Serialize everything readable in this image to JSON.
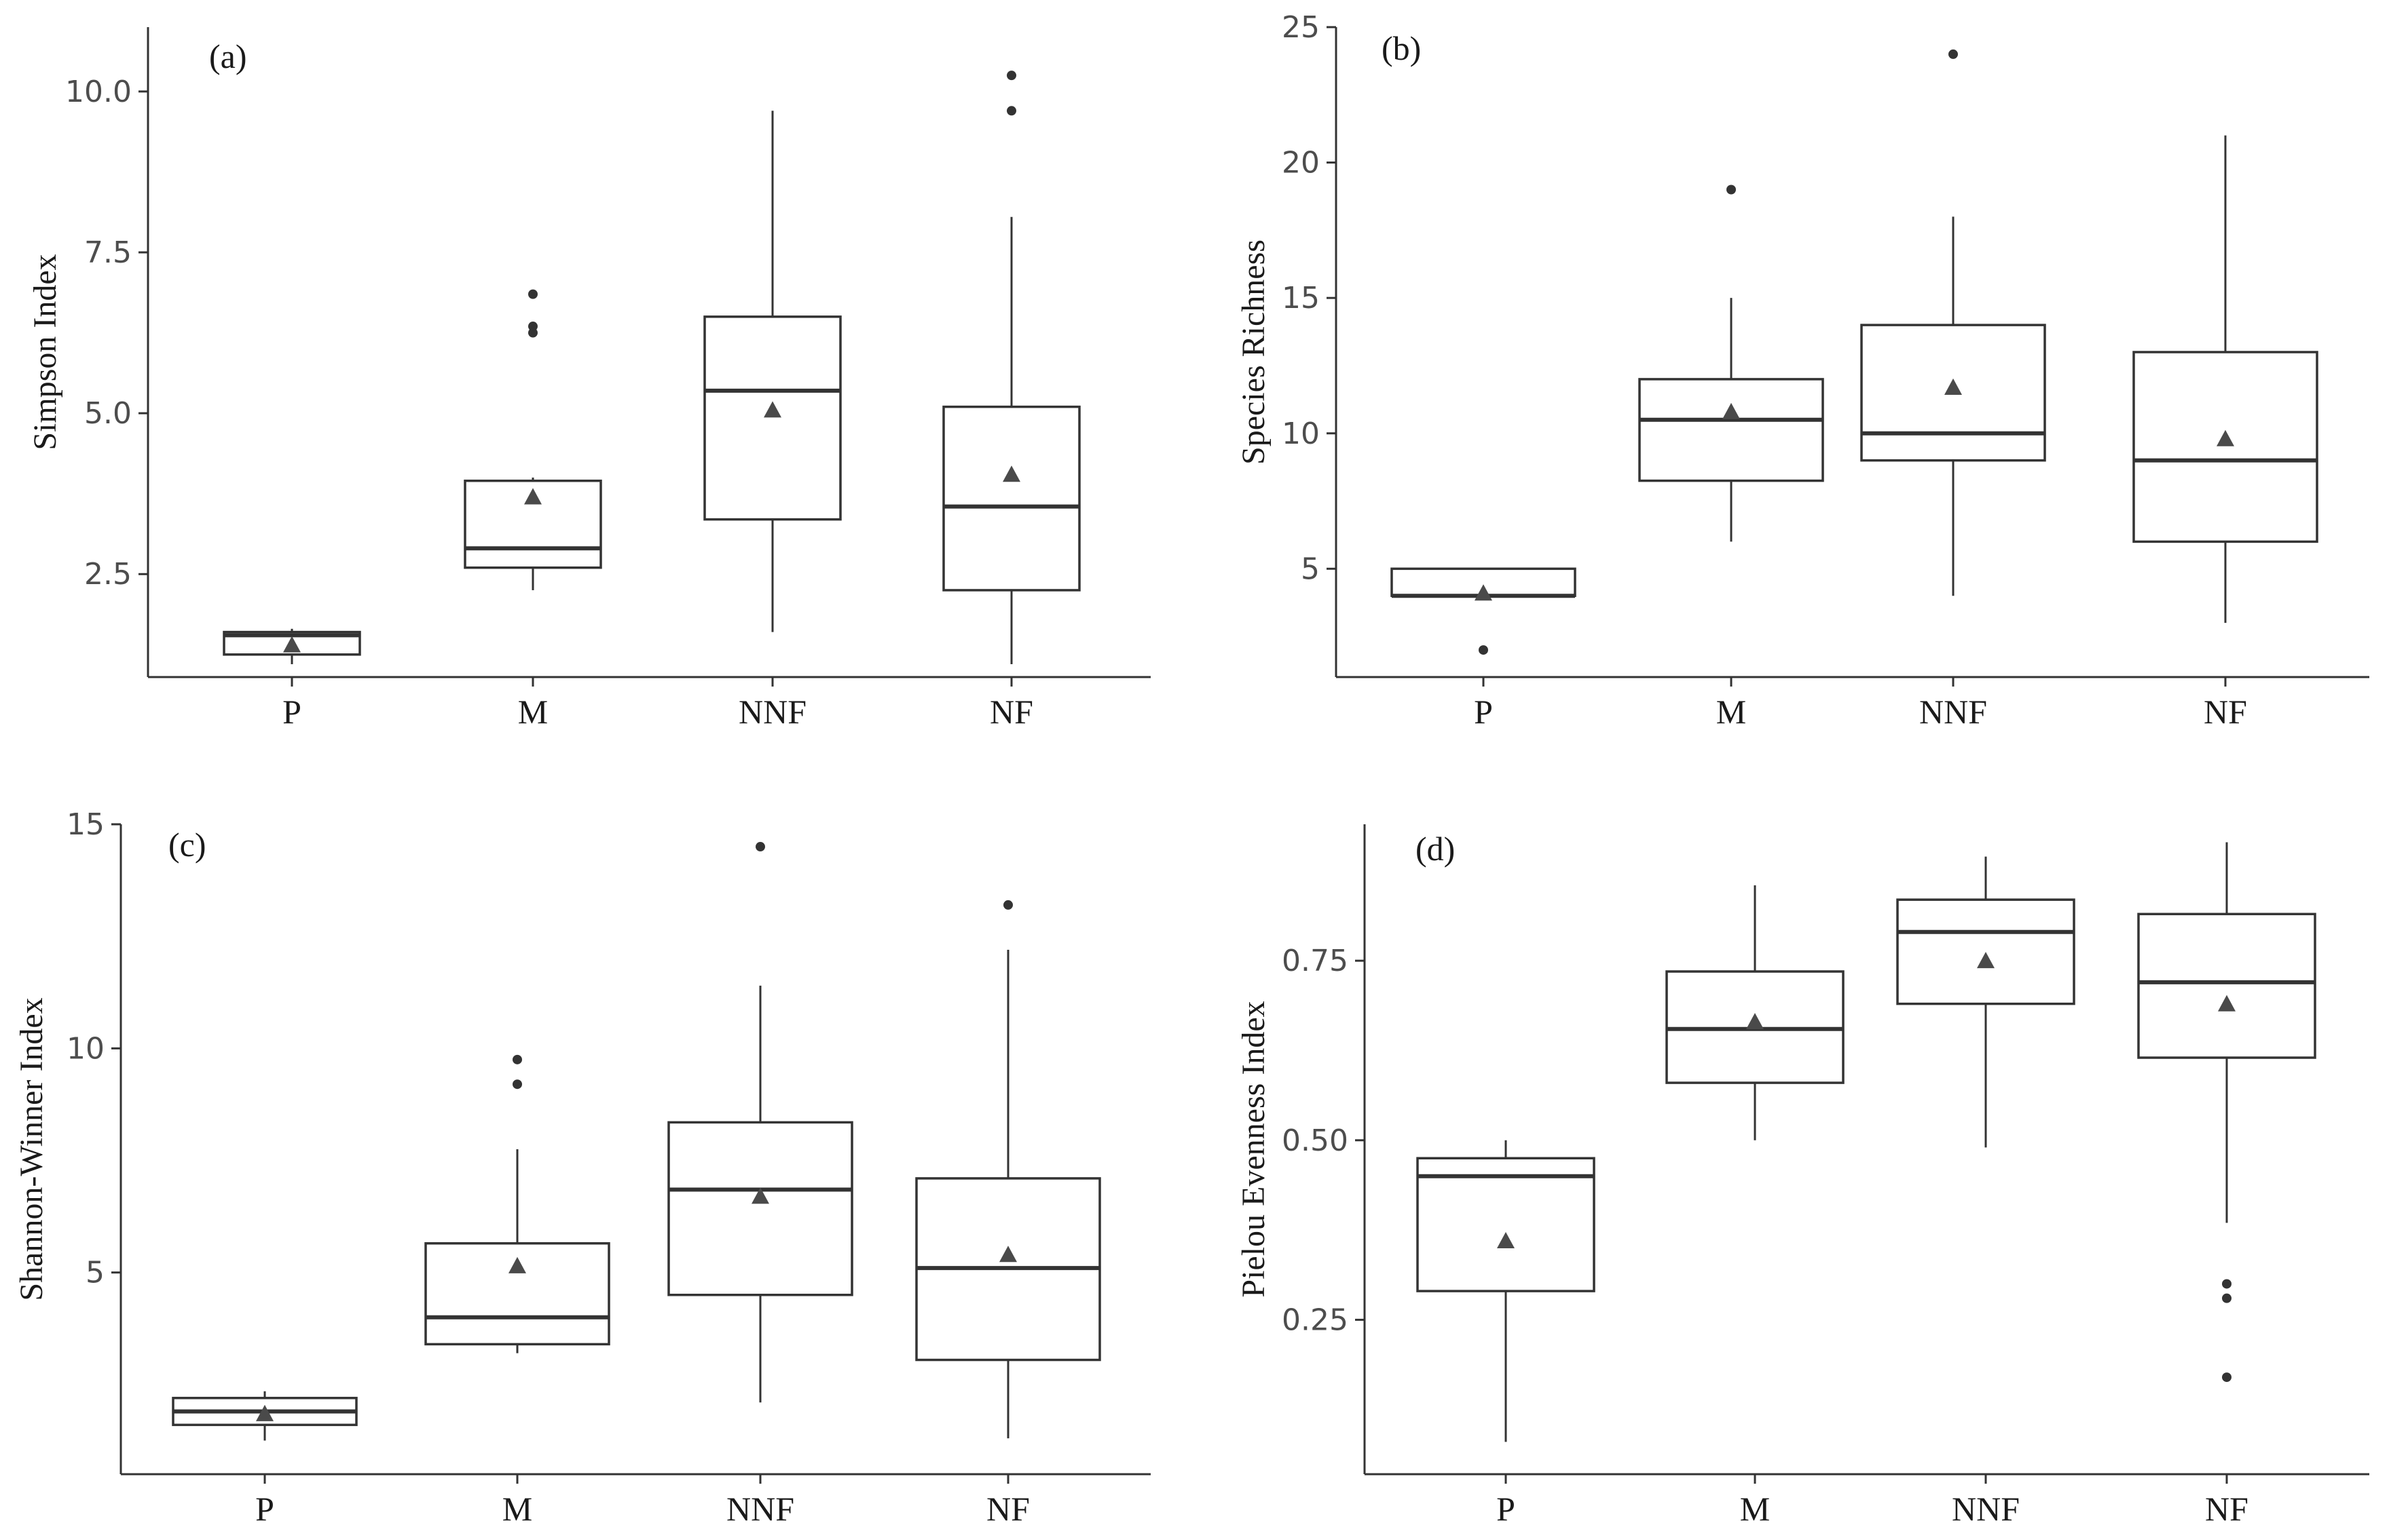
{
  "chart_data": [
    {
      "type": "boxplot",
      "panel_label": "(a)",
      "ylabel": "Simpson Index",
      "xlabel": "",
      "categories": [
        "P",
        "M",
        "NNF",
        "NF"
      ],
      "ylim": [
        0.9,
        11.0
      ],
      "yticks": [
        2.5,
        5.0,
        7.5,
        10.0
      ],
      "ytick_labels": [
        "2.5",
        "5.0",
        "7.5",
        "10.0"
      ],
      "grid": false,
      "boxes": [
        {
          "category": "P",
          "whisker_low": 1.1,
          "q1": 1.25,
          "median": 1.55,
          "q3": 1.6,
          "whisker_high": 1.65,
          "mean": 1.4,
          "outliers": []
        },
        {
          "category": "M",
          "whisker_low": 2.25,
          "q1": 2.6,
          "median": 2.9,
          "q3": 3.95,
          "whisker_high": 4.0,
          "mean": 3.7,
          "outliers": [
            6.25,
            6.35,
            6.85
          ]
        },
        {
          "category": "NNF",
          "whisker_low": 1.6,
          "q1": 3.35,
          "median": 5.35,
          "q3": 6.5,
          "whisker_high": 9.7,
          "mean": 5.05,
          "outliers": []
        },
        {
          "category": "NF",
          "whisker_low": 1.1,
          "q1": 2.25,
          "median": 3.55,
          "q3": 5.1,
          "whisker_high": 8.05,
          "mean": 4.05,
          "outliers": [
            9.7,
            10.25
          ]
        }
      ]
    },
    {
      "type": "boxplot",
      "panel_label": "(b)",
      "ylabel": "Species Richness",
      "xlabel": "",
      "categories": [
        "P",
        "M",
        "NNF",
        "NF"
      ],
      "ylim": [
        1.0,
        25.0
      ],
      "yticks": [
        5,
        10,
        15,
        20,
        25
      ],
      "ytick_labels": [
        "5",
        "10",
        "15",
        "20",
        "25"
      ],
      "grid": false,
      "boxes": [
        {
          "category": "P",
          "whisker_low": 4.0,
          "q1": 4.0,
          "median": 4.0,
          "q3": 5.0,
          "whisker_high": 5.0,
          "mean": 4.1,
          "outliers": [
            2.0
          ]
        },
        {
          "category": "M",
          "whisker_low": 6.0,
          "q1": 8.25,
          "median": 10.5,
          "q3": 12.0,
          "whisker_high": 15.0,
          "mean": 10.8,
          "outliers": [
            19.0
          ]
        },
        {
          "category": "NNF",
          "whisker_low": 4.0,
          "q1": 9.0,
          "median": 10.0,
          "q3": 14.0,
          "whisker_high": 18.0,
          "mean": 11.7,
          "outliers": [
            24.0
          ]
        },
        {
          "category": "NF",
          "whisker_low": 3.0,
          "q1": 6.0,
          "median": 9.0,
          "q3": 13.0,
          "whisker_high": 21.0,
          "mean": 9.8,
          "outliers": []
        }
      ]
    },
    {
      "type": "boxplot",
      "panel_label": "(c)",
      "ylabel": "Shannon-Winner Index",
      "xlabel": "",
      "categories": [
        "P",
        "M",
        "NNF",
        "NF"
      ],
      "ylim": [
        0.5,
        15.0
      ],
      "yticks": [
        5,
        10,
        15
      ],
      "ytick_labels": [
        "5",
        "10",
        "15"
      ],
      "grid": false,
      "boxes": [
        {
          "category": "P",
          "whisker_low": 1.25,
          "q1": 1.6,
          "median": 1.9,
          "q3": 2.2,
          "whisker_high": 2.35,
          "mean": 1.85,
          "outliers": []
        },
        {
          "category": "M",
          "whisker_low": 3.2,
          "q1": 3.4,
          "median": 4.0,
          "q3": 5.65,
          "whisker_high": 7.75,
          "mean": 5.15,
          "outliers": [
            9.2,
            9.75
          ]
        },
        {
          "category": "NNF",
          "whisker_low": 2.1,
          "q1": 4.5,
          "median": 6.85,
          "q3": 8.35,
          "whisker_high": 11.4,
          "mean": 6.7,
          "outliers": [
            14.5
          ]
        },
        {
          "category": "NF",
          "whisker_low": 1.3,
          "q1": 3.05,
          "median": 5.1,
          "q3": 7.1,
          "whisker_high": 12.2,
          "mean": 5.4,
          "outliers": [
            13.2
          ]
        }
      ]
    },
    {
      "type": "boxplot",
      "panel_label": "(d)",
      "ylabel": "Pielou  Evenness Index",
      "xlabel": "",
      "categories": [
        "P",
        "M",
        "NNF",
        "NF"
      ],
      "ylim": [
        0.035,
        0.94
      ],
      "yticks": [
        0.25,
        0.5,
        0.75
      ],
      "ytick_labels": [
        "0.25",
        "0.50",
        "0.75"
      ],
      "grid": false,
      "boxes": [
        {
          "category": "P",
          "whisker_low": 0.08,
          "q1": 0.29,
          "median": 0.45,
          "q3": 0.475,
          "whisker_high": 0.5,
          "mean": 0.36,
          "outliers": []
        },
        {
          "category": "M",
          "whisker_low": 0.5,
          "q1": 0.58,
          "median": 0.655,
          "q3": 0.735,
          "whisker_high": 0.855,
          "mean": 0.665,
          "outliers": []
        },
        {
          "category": "NNF",
          "whisker_low": 0.49,
          "q1": 0.69,
          "median": 0.79,
          "q3": 0.835,
          "whisker_high": 0.895,
          "mean": 0.75,
          "outliers": []
        },
        {
          "category": "NF",
          "whisker_low": 0.385,
          "q1": 0.615,
          "median": 0.72,
          "q3": 0.815,
          "whisker_high": 0.915,
          "mean": 0.69,
          "outliers": [
            0.17,
            0.28,
            0.3
          ]
        }
      ]
    }
  ]
}
